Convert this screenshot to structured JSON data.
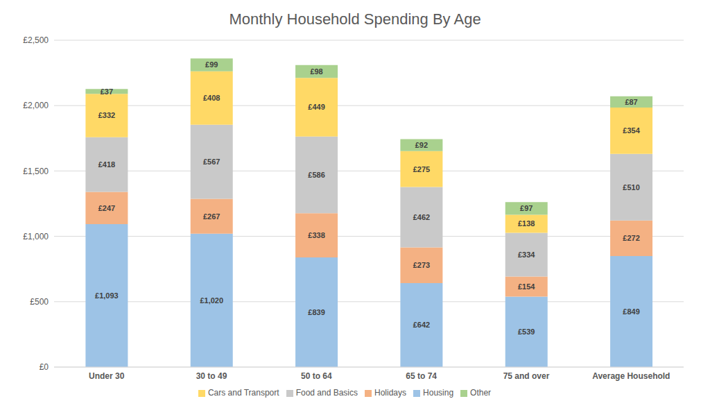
{
  "chart_data": {
    "type": "bar",
    "title": "Monthly Household Spending By Age",
    "categories": [
      "Under 30",
      "30 to 49",
      "50 to 64",
      "65 to 74",
      "75 and over",
      "Average Household"
    ],
    "series": [
      {
        "name": "Housing",
        "color": "#9dc3e6",
        "values": [
          1093,
          1020,
          839,
          642,
          539,
          849
        ],
        "value_labels": [
          "£1,093",
          "£1,020",
          "£839",
          "£642",
          "£539",
          "£849"
        ]
      },
      {
        "name": "Holidays",
        "color": "#f4b183",
        "values": [
          247,
          267,
          338,
          273,
          154,
          272
        ],
        "value_labels": [
          "£247",
          "£267",
          "£338",
          "£273",
          "£154",
          "£272"
        ]
      },
      {
        "name": "Food and Basics",
        "color": "#c9c9c9",
        "values": [
          418,
          567,
          586,
          462,
          334,
          510
        ],
        "value_labels": [
          "£418",
          "£567",
          "£586",
          "£462",
          "£334",
          "£510"
        ]
      },
      {
        "name": "Cars and Transport",
        "color": "#ffd966",
        "values": [
          332,
          408,
          449,
          275,
          138,
          354
        ],
        "value_labels": [
          "£332",
          "£408",
          "£449",
          "£275",
          "£138",
          "£354"
        ]
      },
      {
        "name": "Other",
        "color": "#a9d18e",
        "values": [
          37,
          99,
          98,
          92,
          97,
          87
        ],
        "value_labels": [
          "£37",
          "£99",
          "£98",
          "£92",
          "£97",
          "£87"
        ]
      }
    ],
    "ylim": [
      0,
      2500
    ],
    "yticks": [
      {
        "value": 0,
        "label": "£0"
      },
      {
        "value": 500,
        "label": "£500"
      },
      {
        "value": 1000,
        "label": "£1,000"
      },
      {
        "value": 1500,
        "label": "£1,500"
      },
      {
        "value": 2000,
        "label": "£2,000"
      },
      {
        "value": 2500,
        "label": "£2,500"
      }
    ],
    "grid": true,
    "legend": "bottom",
    "stacked": true,
    "data_labels": true
  }
}
